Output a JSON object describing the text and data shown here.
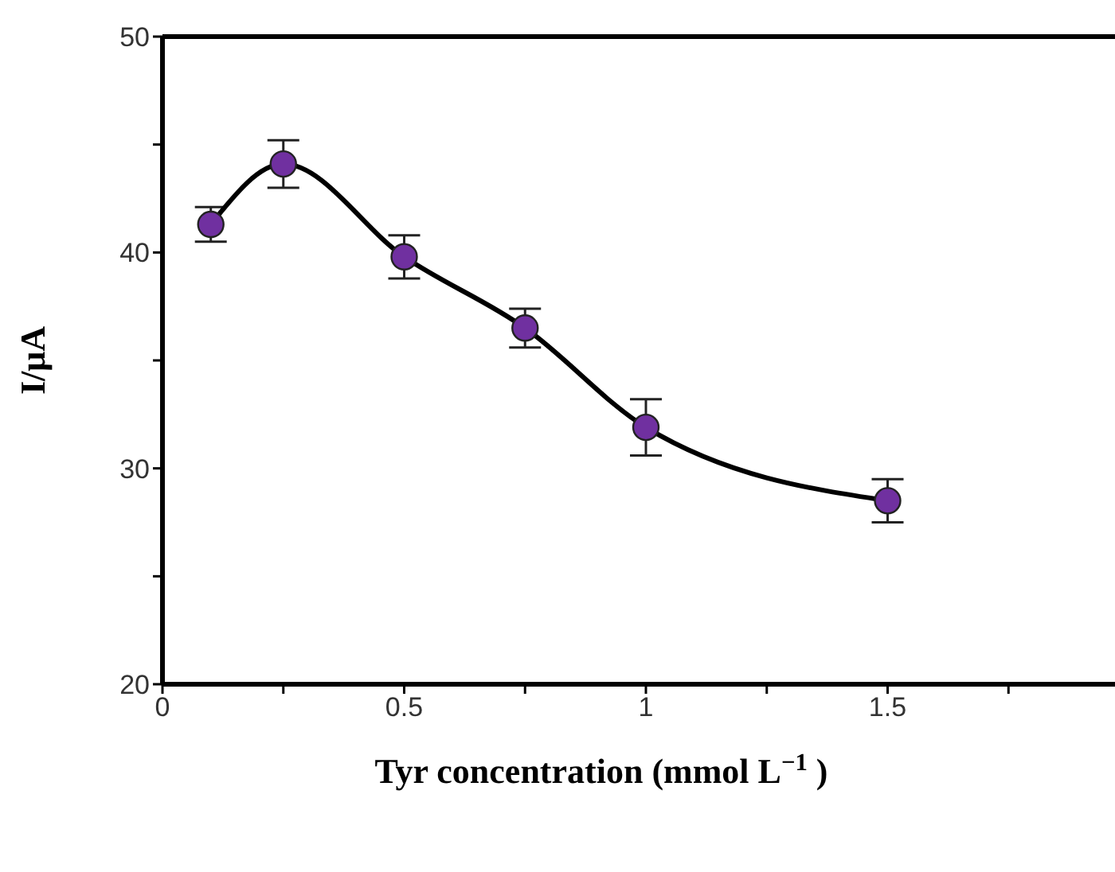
{
  "chart_data": {
    "type": "line",
    "xlabel": "Tyr concentration (mmol L$^{−1}$ )",
    "ylabel": "I/μA",
    "x": [
      0.1,
      0.25,
      0.5,
      0.75,
      1.0,
      1.5
    ],
    "series": [
      {
        "color": "#7030a0",
        "values": [
          41.3,
          44.1,
          39.8,
          36.5,
          31.9,
          28.5
        ],
        "errors": [
          0.8,
          1.1,
          1.0,
          0.9,
          1.3,
          1.0
        ]
      }
    ],
    "xlim": [
      0,
      2
    ],
    "xticks": [
      0,
      {
        "value": 0.25,
        "label": null
      },
      0.5,
      {
        "value": 0.75,
        "label": null
      },
      1,
      {
        "value": 1.25,
        "label": null
      },
      1.5,
      {
        "value": 1.75,
        "label": null
      }
    ],
    "ylim": [
      20,
      50
    ],
    "yticks": [
      20,
      {
        "value": 25,
        "label": null
      },
      30,
      {
        "value": 35,
        "label": null
      },
      40,
      {
        "value": 45,
        "label": null
      },
      50
    ],
    "marker": "circle",
    "line_style": "solid",
    "grid": false,
    "legend": false
  }
}
